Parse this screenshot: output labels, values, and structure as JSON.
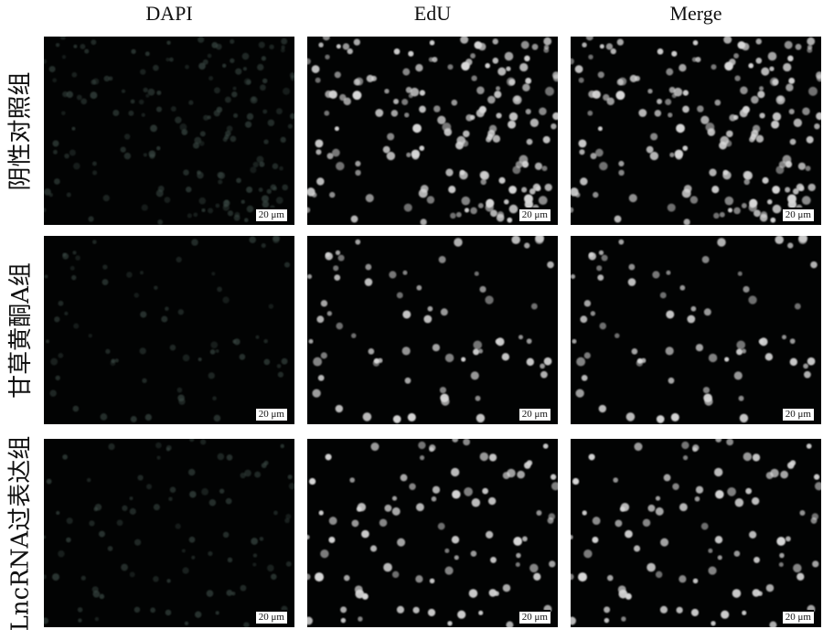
{
  "columns": [
    "DAPI",
    "EdU",
    "Merge"
  ],
  "rows": [
    "阴性对照组",
    "甘草黄酮A组",
    "LncRNA过表达组"
  ],
  "scale_bar": "20 μm",
  "colors": {
    "background": "#020303",
    "dapi_nuclei": "#3a4a44",
    "edu_nuclei": "#d8d8d8"
  }
}
